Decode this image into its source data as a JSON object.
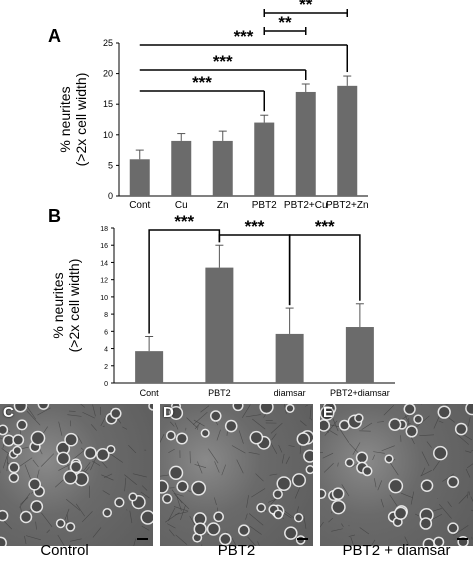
{
  "chart_data": [
    {
      "type": "bar",
      "panel_letter": "A",
      "categories": [
        "Cont",
        "Cu",
        "Zn",
        "PBT2",
        "PBT2+Cu",
        "PBT2+Zn"
      ],
      "values": [
        6,
        9,
        9,
        12,
        17,
        18
      ],
      "errors": [
        1.5,
        1.2,
        1.6,
        1.2,
        1.3,
        1.6
      ],
      "ylabel": "% neurites\n(>2x cell width)",
      "ylim": [
        0,
        25
      ],
      "yticks": [
        "0",
        "5",
        "10",
        "15",
        "20",
        "25"
      ],
      "significance": [
        {
          "from": 0,
          "to": 3,
          "label": "***"
        },
        {
          "from": 0,
          "to": 4,
          "label": "***"
        },
        {
          "from": 0,
          "to": 5,
          "label": "***"
        },
        {
          "from": 3,
          "to": 4,
          "label": "**"
        },
        {
          "from": 3,
          "to": 5,
          "label": "**"
        }
      ],
      "bar_color": "#6b6b6b"
    },
    {
      "type": "bar",
      "panel_letter": "B",
      "categories": [
        "Cont",
        "PBT2",
        "diamsar",
        "PBT2+diamsar"
      ],
      "values": [
        3.7,
        13.4,
        5.7,
        6.5
      ],
      "errors": [
        1.7,
        2.6,
        3.0,
        2.7
      ],
      "ylabel": "% neurites\n(>2x cell width)",
      "ylim": [
        0,
        18
      ],
      "yticks": [
        "0",
        "2",
        "4",
        "6",
        "8",
        "10",
        "12",
        "14",
        "16",
        "18"
      ],
      "significance": [
        {
          "from": 0,
          "to": 1,
          "label": "***"
        },
        {
          "from": 1,
          "to": 2,
          "label": "***"
        },
        {
          "from": 2,
          "to": 3,
          "label": "***"
        }
      ],
      "bar_color": "#6b6b6b"
    }
  ],
  "micrographs": [
    {
      "letter": "C",
      "caption": "Control"
    },
    {
      "letter": "D",
      "caption": "PBT2"
    },
    {
      "letter": "E",
      "caption": "PBT2 + diamsar"
    }
  ]
}
